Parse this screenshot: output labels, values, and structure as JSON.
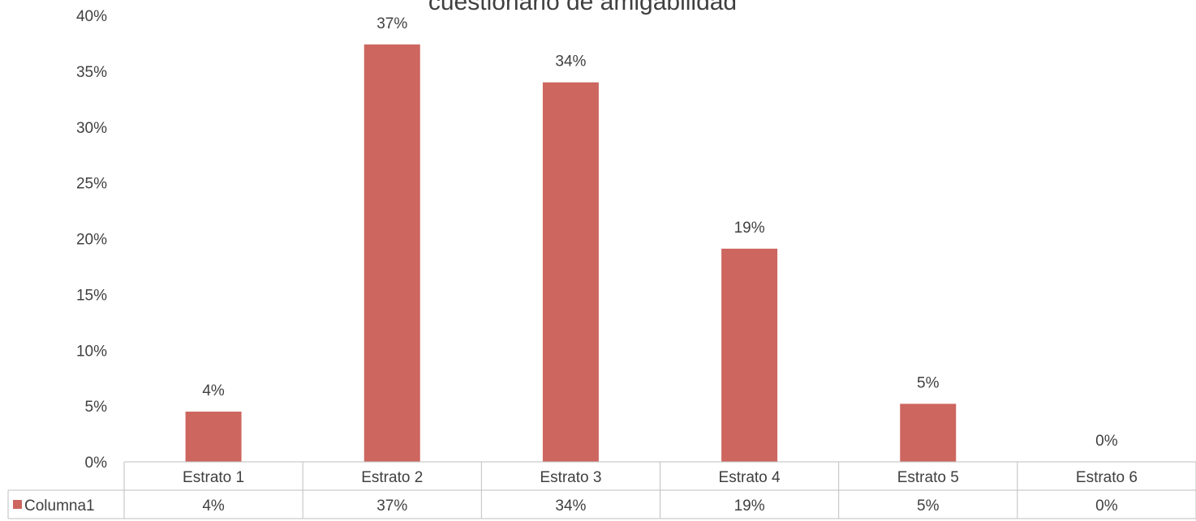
{
  "chart_data": {
    "type": "bar",
    "title": "cuestionario de amigabilidad",
    "categories": [
      "Estrato 1",
      "Estrato 2",
      "Estrato 3",
      "Estrato 4",
      "Estrato 5",
      "Estrato 6"
    ],
    "series": [
      {
        "name": "Columna1",
        "values": [
          0.045,
          0.374,
          0.34,
          0.191,
          0.052,
          0.0
        ],
        "labels": [
          "4%",
          "37%",
          "34%",
          "19%",
          "5%",
          "0%"
        ],
        "color": "#cd665f"
      }
    ],
    "ylim": [
      0,
      0.4
    ],
    "yticks": [
      "0%",
      "5%",
      "10%",
      "15%",
      "20%",
      "25%",
      "30%",
      "35%",
      "40%"
    ],
    "grid": false,
    "legend": "data-table",
    "data_table": true
  }
}
